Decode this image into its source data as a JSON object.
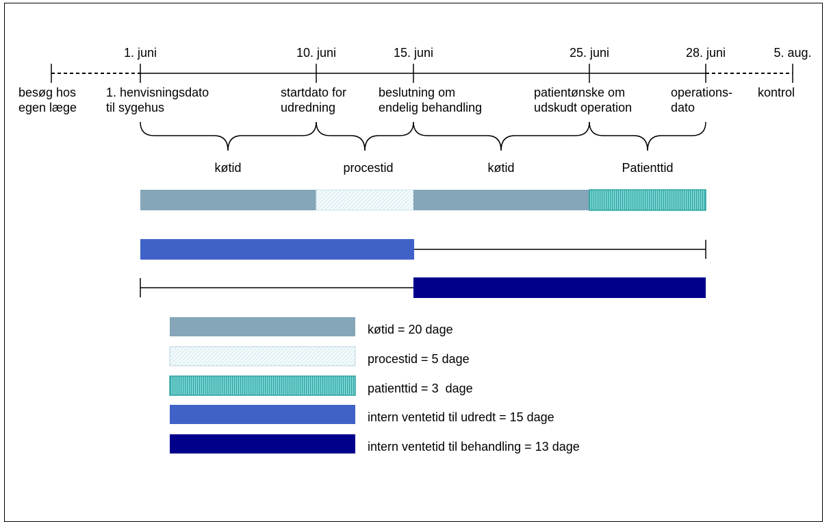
{
  "dates": [
    "1. juni",
    "10. juni",
    "15. juni",
    "25. juni",
    "28. juni",
    "5. aug."
  ],
  "events": [
    [
      "besøg hos",
      "egen læge"
    ],
    [
      "1. henvisningsdato",
      "til sygehus"
    ],
    [
      "startdato for",
      "udredning"
    ],
    [
      "beslutning om",
      "endelig behandling"
    ],
    [
      "patientønske om",
      "udskudt operation"
    ],
    [
      "operations-",
      "dato"
    ],
    [
      "kontrol"
    ]
  ],
  "periods": [
    "køtid",
    "procestid",
    "køtid",
    "Patienttid"
  ],
  "legend": [
    {
      "label": "køtid = 20 dage",
      "style": "kotid"
    },
    {
      "label": "procestid = 5 dage",
      "style": "procestid"
    },
    {
      "label": "patienttid = 3  dage",
      "style": "patienttid"
    },
    {
      "label": "intern ventetid til udredt = 15 dage",
      "style": "udredt"
    },
    {
      "label": "intern ventetid til behandling = 13 dage",
      "style": "behandling"
    }
  ],
  "colors": {
    "kotid": "#84a6b8",
    "procestid_hatch": "#c7e2ea",
    "patienttid_fill": "#6ad0cf",
    "patienttid_stripe": "#2ea3a0",
    "udredt": "#4062c8",
    "behandling": "#00008b"
  }
}
